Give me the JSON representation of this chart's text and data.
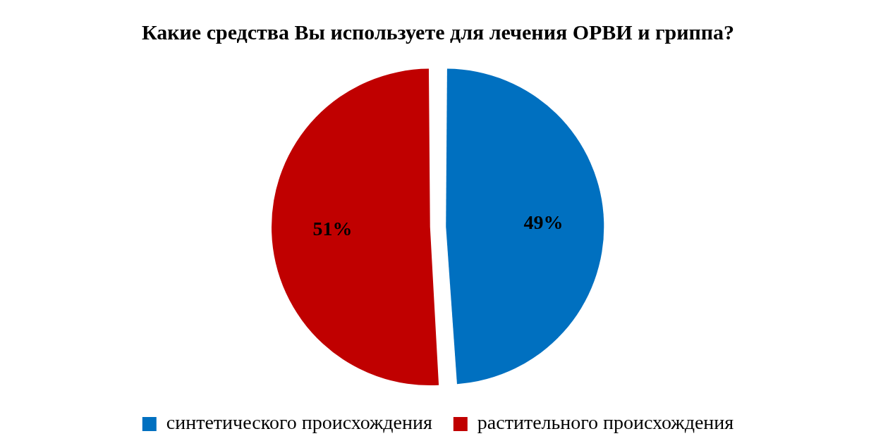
{
  "chart_data": {
    "type": "pie",
    "title": "Какие средства Вы используете для лечения ОРВИ и гриппа?",
    "categories": [
      "синтетического происхождения",
      "растительного происхождения"
    ],
    "values": [
      49,
      51
    ],
    "colors": [
      "#0070c0",
      "#c00000"
    ],
    "value_labels": [
      "49%",
      "51%"
    ],
    "legend": "bottom"
  }
}
